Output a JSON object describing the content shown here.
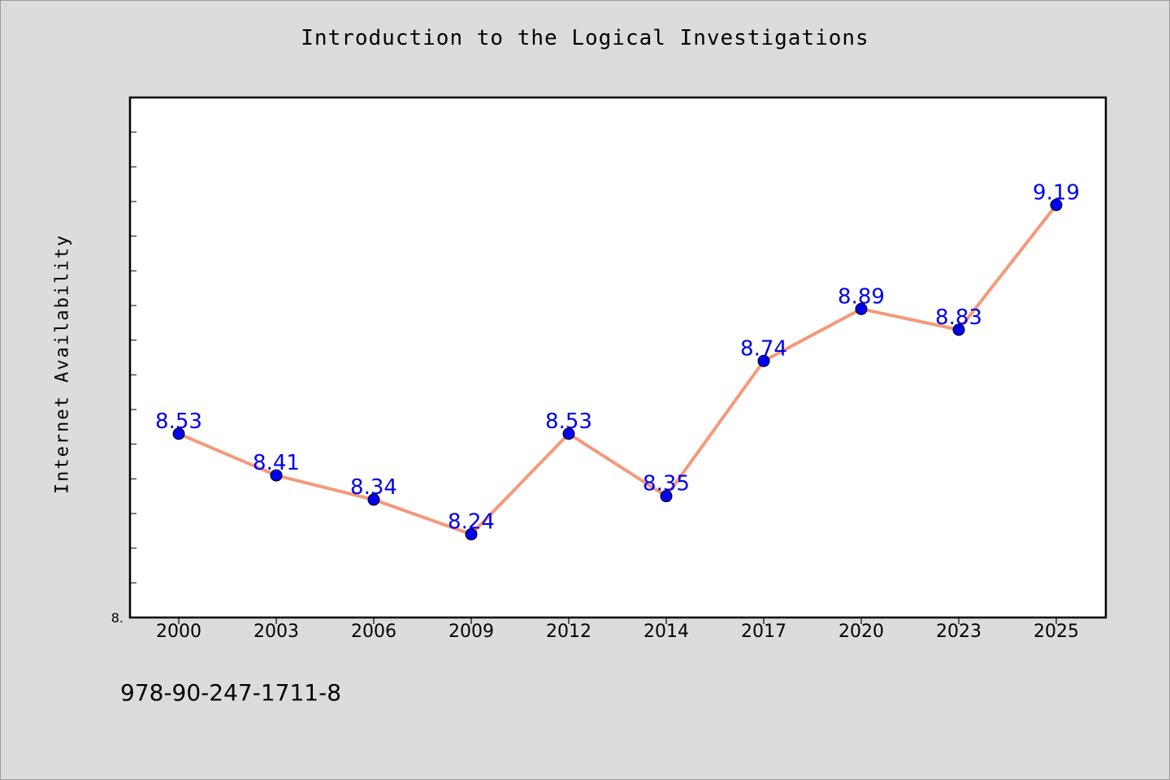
{
  "chart_data": {
    "type": "line",
    "title": "Introduction to the Logical Investigations",
    "xlabel": "",
    "ylabel": "Internet Availability",
    "categories": [
      "2000",
      "2003",
      "2006",
      "2009",
      "2012",
      "2014",
      "2017",
      "2020",
      "2023",
      "2025"
    ],
    "series": [
      {
        "values": [
          8.53,
          8.41,
          8.34,
          8.24,
          8.53,
          8.35,
          8.74,
          8.89,
          8.83,
          9.19
        ],
        "data_labels": [
          "8.53",
          "8.41",
          "8.34",
          "8.24",
          "8.53",
          "8.35",
          "8.74",
          "8.89",
          "8.83",
          "9.19"
        ],
        "line_color": "#f4997a",
        "marker_color": "#0000ee",
        "label_color": "#0000ee"
      }
    ],
    "ylim": [
      8.0,
      9.5
    ],
    "y_tick_label": "8.",
    "grid": false,
    "legend": "none"
  },
  "footer": {
    "isbn": "978-90-247-1711-8"
  }
}
